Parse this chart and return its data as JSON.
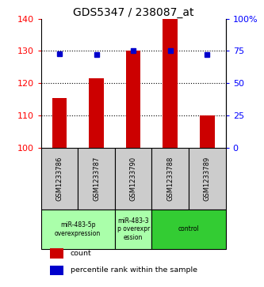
{
  "title": "GDS5347 / 238087_at",
  "samples": [
    "GSM1233786",
    "GSM1233787",
    "GSM1233790",
    "GSM1233788",
    "GSM1233789"
  ],
  "count_values": [
    115.5,
    121.5,
    130.0,
    140.0,
    110.0
  ],
  "percentile_values": [
    73,
    72,
    75,
    75,
    72
  ],
  "ylim_left": [
    100,
    140
  ],
  "ylim_right": [
    0,
    100
  ],
  "yticks_left": [
    100,
    110,
    120,
    130,
    140
  ],
  "yticks_right": [
    0,
    25,
    50,
    75,
    100
  ],
  "bar_color": "#cc0000",
  "dot_color": "#0000cc",
  "bg_color": "#ffffff",
  "label_bg": "#cccccc",
  "proto_light": "#aaffaa",
  "proto_dark": "#33cc33",
  "protocol_groups": [
    {
      "label": "miR-483-5p\noverexpression",
      "start": 0,
      "end": 1,
      "color": "#aaffaa"
    },
    {
      "label": "miR-483-3\np overexpr\nession",
      "start": 2,
      "end": 2,
      "color": "#aaffaa"
    },
    {
      "label": "control",
      "start": 3,
      "end": 4,
      "color": "#33cc33"
    }
  ],
  "legend_items": [
    {
      "color": "#cc0000",
      "label": "count"
    },
    {
      "color": "#0000cc",
      "label": "percentile rank within the sample"
    }
  ],
  "bar_width": 0.4
}
